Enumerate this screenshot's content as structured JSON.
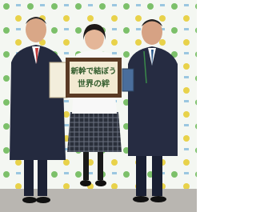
{
  "photo": {
    "sign": {
      "lines": [
        "新幹で結ぼう",
        "世界の絆"
      ]
    }
  }
}
